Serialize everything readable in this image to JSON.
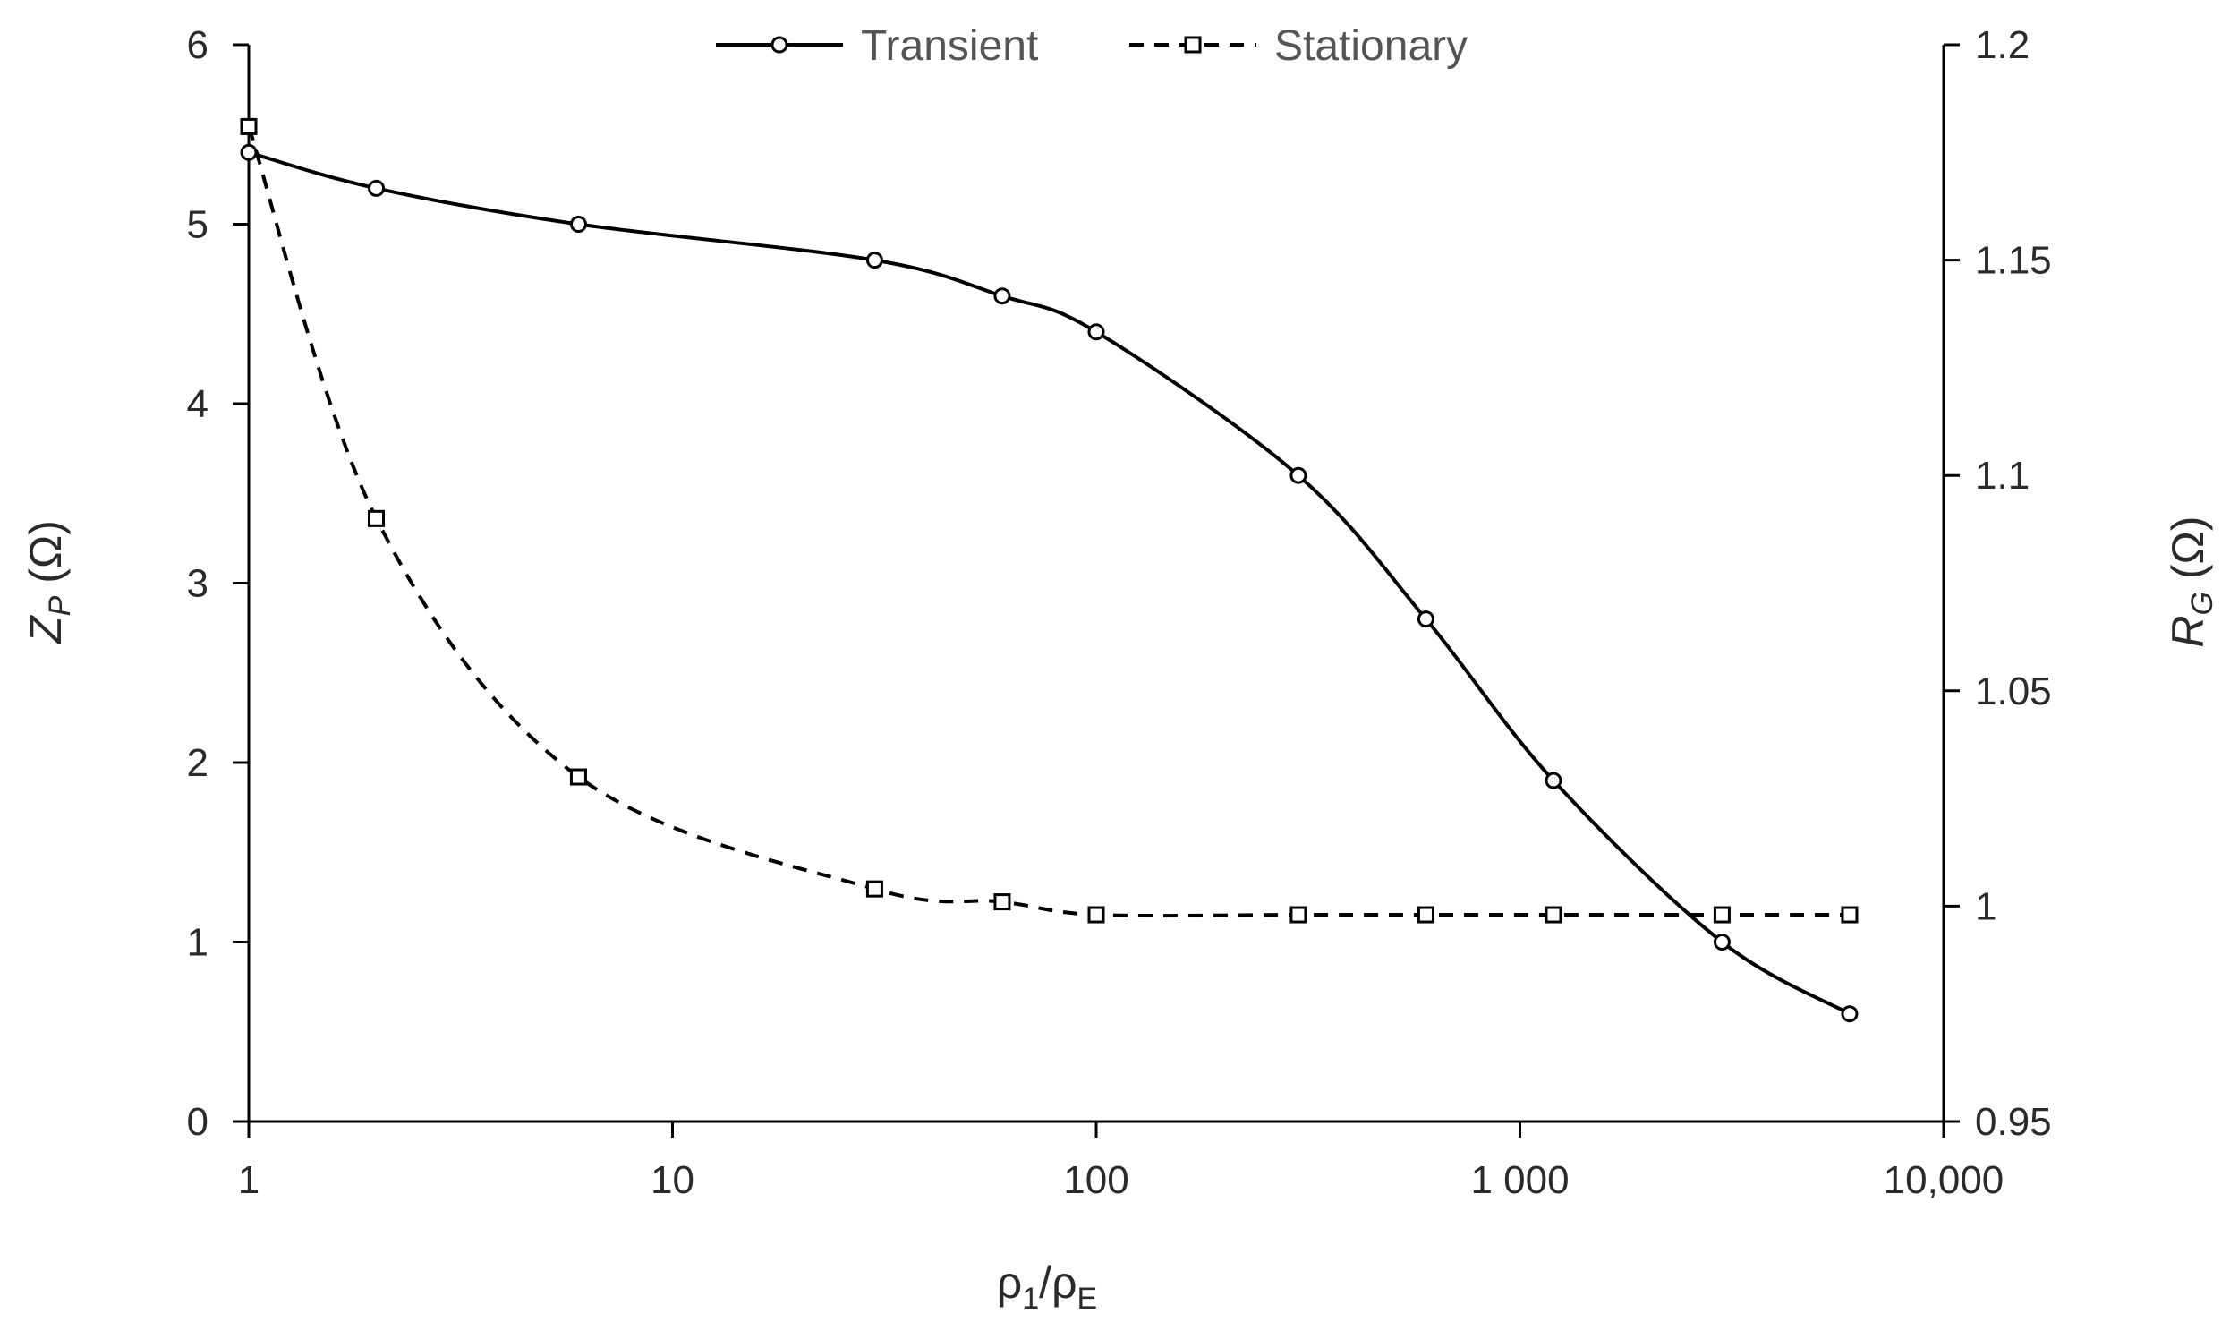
{
  "chart_data": {
    "type": "line",
    "title": "",
    "x_scale": "log",
    "x_label": {
      "main": "ρ",
      "sub1": "1",
      "sep": "/ρ",
      "sub2": "E"
    },
    "y_left_label": {
      "main": "Z",
      "sub": "P",
      "unit": " (Ω)"
    },
    "y_right_label": {
      "main": "R",
      "sub": "G",
      "unit": " (Ω)"
    },
    "xlim": [
      1,
      10000
    ],
    "ylim_left": [
      0,
      6
    ],
    "ylim_right": [
      0.95,
      1.2
    ],
    "x_ticks": [
      {
        "value": 1,
        "label": "1"
      },
      {
        "value": 10,
        "label": "10"
      },
      {
        "value": 100,
        "label": "100"
      },
      {
        "value": 1000,
        "label": "1 000"
      },
      {
        "value": 10000,
        "label": "10,000"
      }
    ],
    "y_left_ticks": [
      {
        "value": 0,
        "label": "0"
      },
      {
        "value": 1,
        "label": "1"
      },
      {
        "value": 2,
        "label": "2"
      },
      {
        "value": 3,
        "label": "3"
      },
      {
        "value": 4,
        "label": "4"
      },
      {
        "value": 5,
        "label": "5"
      },
      {
        "value": 6,
        "label": "6"
      }
    ],
    "y_right_ticks": [
      {
        "value": 0.95,
        "label": "0.95"
      },
      {
        "value": 1.0,
        "label": "1"
      },
      {
        "value": 1.05,
        "label": "1.05"
      },
      {
        "value": 1.1,
        "label": "1.1"
      },
      {
        "value": 1.15,
        "label": "1.15"
      },
      {
        "value": 1.2,
        "label": "1.2"
      }
    ],
    "grid": false,
    "legend": {
      "position": "top-center"
    },
    "series": [
      {
        "name": "Transient",
        "axis": "left",
        "line_style": "solid",
        "marker": "circle",
        "color": "#000000",
        "points": [
          {
            "x": 1,
            "y": 5.4
          },
          {
            "x": 2,
            "y": 5.2
          },
          {
            "x": 6,
            "y": 5.0
          },
          {
            "x": 30,
            "y": 4.8
          },
          {
            "x": 60,
            "y": 4.6
          },
          {
            "x": 100,
            "y": 4.4
          },
          {
            "x": 300,
            "y": 3.6
          },
          {
            "x": 600,
            "y": 2.8
          },
          {
            "x": 1200,
            "y": 1.9
          },
          {
            "x": 3000,
            "y": 1.0
          },
          {
            "x": 6000,
            "y": 0.6
          }
        ]
      },
      {
        "name": "Stationary",
        "axis": "right",
        "line_style": "dashed",
        "marker": "square",
        "color": "#000000",
        "points": [
          {
            "x": 1,
            "y": 1.181
          },
          {
            "x": 2,
            "y": 1.09
          },
          {
            "x": 6,
            "y": 1.03
          },
          {
            "x": 30,
            "y": 1.004
          },
          {
            "x": 60,
            "y": 1.001
          },
          {
            "x": 100,
            "y": 0.998
          },
          {
            "x": 300,
            "y": 0.998
          },
          {
            "x": 600,
            "y": 0.998
          },
          {
            "x": 1200,
            "y": 0.998
          },
          {
            "x": 3000,
            "y": 0.998
          },
          {
            "x": 6000,
            "y": 0.998
          }
        ]
      }
    ]
  }
}
